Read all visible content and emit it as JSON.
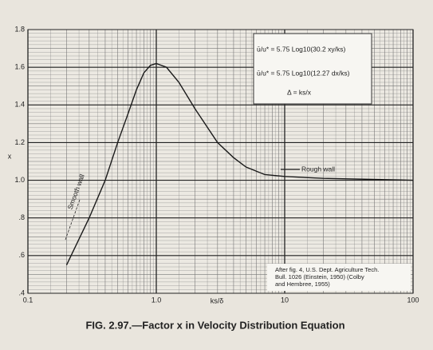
{
  "chart_data": {
    "type": "line",
    "title": "FIG. 2.97.—Factor x in Velocity Distribution Equation",
    "ylabel": "x",
    "xlabel": "ks/δ",
    "annotations": [
      "ū/u* = 5.75 Log10(30.2 xy/ks)",
      "ū/u* = 5.75 Log10(12.27 dx/ks)",
      "Δ = ks/x",
      "Smooth wall",
      "Rough wall",
      "After fig. 4, U.S. Dept. Agriculture Tech.",
      "Bull. 1026 (Einstein, 1950) (Colby",
      "and Hembree, 1955)"
    ],
    "x": [
      0.2,
      0.3,
      0.4,
      0.5,
      0.6,
      0.7,
      0.8,
      0.9,
      1.0,
      1.2,
      1.5,
      2,
      3,
      4,
      5,
      7,
      10,
      20,
      100
    ],
    "series": [
      {
        "name": "x",
        "color": "#1a1a1a",
        "values": [
          0.55,
          0.8,
          1.0,
          1.2,
          1.35,
          1.48,
          1.57,
          1.61,
          1.62,
          1.6,
          1.52,
          1.38,
          1.2,
          1.12,
          1.07,
          1.03,
          1.02,
          1.01,
          1.0
        ]
      }
    ],
    "xlog": true,
    "xlim": [
      0.1,
      100
    ],
    "xticks": [
      0.1,
      {
        "value": 1,
        "label": "1.0"
      },
      10,
      100
    ],
    "ylim": [
      0.4,
      1.8
    ],
    "yticks": [
      {
        "value": 0.4,
        "label": ".4"
      },
      {
        "value": 0.6,
        "label": ".6"
      },
      {
        "value": 0.8,
        "label": ".8"
      },
      {
        "value": 1,
        "label": "1.0"
      },
      1.2,
      1.4,
      1.6,
      1.8
    ],
    "grid": true,
    "minor_grid": true
  }
}
